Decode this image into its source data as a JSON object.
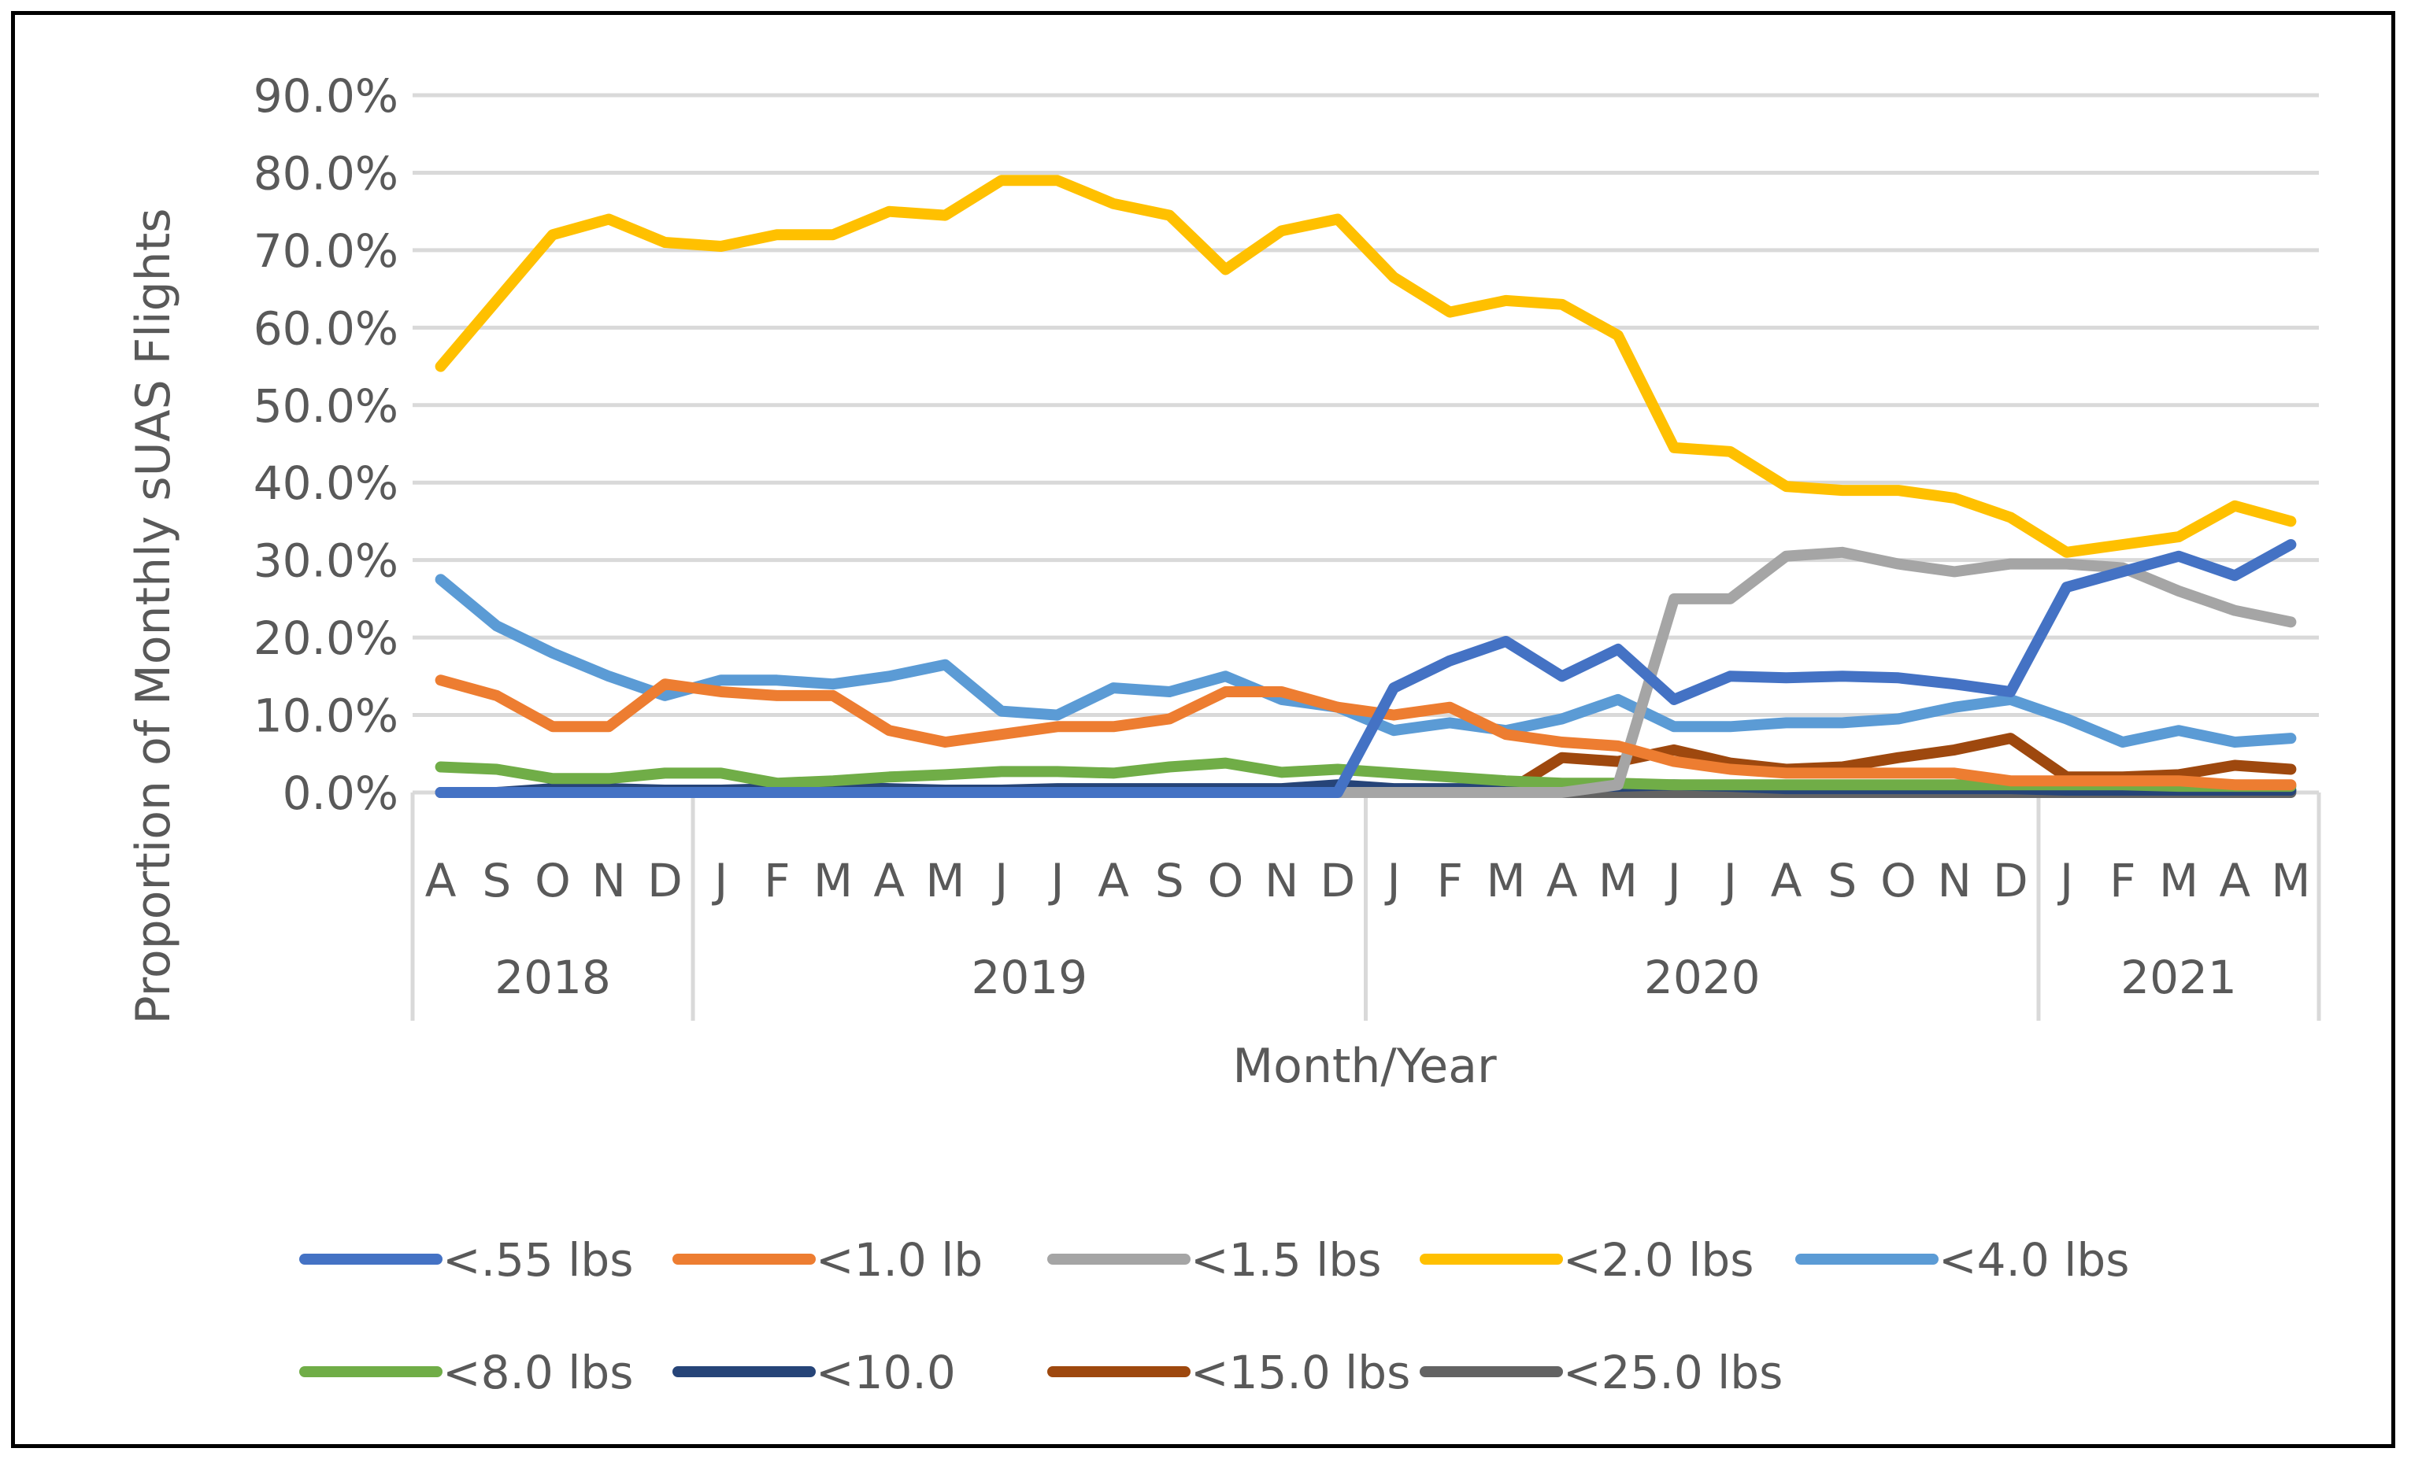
{
  "chart_data": {
    "type": "line",
    "title": "",
    "xlabel": "Month/Year",
    "ylabel": "Proportion of Monthly sUAS Flights",
    "ylim": [
      0,
      90
    ],
    "y_ticks": [
      0,
      10,
      20,
      30,
      40,
      50,
      60,
      70,
      80,
      90
    ],
    "y_tick_labels": [
      "0.0%",
      "10.0%",
      "20.0%",
      "30.0%",
      "40.0%",
      "50.0%",
      "60.0%",
      "70.0%",
      "80.0%",
      "90.0%"
    ],
    "grid": true,
    "legend_position": "bottom",
    "categories": [
      "A",
      "S",
      "O",
      "N",
      "D",
      "J",
      "F",
      "M",
      "A",
      "M",
      "J",
      "J",
      "A",
      "S",
      "O",
      "N",
      "D",
      "J",
      "F",
      "M",
      "A",
      "M",
      "J",
      "J",
      "A",
      "S",
      "O",
      "N",
      "D",
      "J",
      "F",
      "M",
      "A",
      "M"
    ],
    "year_groups": [
      {
        "label": "2018",
        "start": 0,
        "end": 4
      },
      {
        "label": "2019",
        "start": 5,
        "end": 16
      },
      {
        "label": "2020",
        "start": 17,
        "end": 28
      },
      {
        "label": "2021",
        "start": 29,
        "end": 33
      }
    ],
    "series": [
      {
        "name": "<.55 lbs",
        "color": "#4472C4",
        "values": [
          0,
          0,
          0,
          0,
          0,
          0,
          0,
          0,
          0,
          0,
          0,
          0,
          0,
          0,
          0,
          0,
          0,
          13.5,
          17,
          19.5,
          15,
          18.5,
          12,
          15,
          14.8,
          15,
          14.8,
          14,
          13,
          26.5,
          28.5,
          30.5,
          28,
          32
        ]
      },
      {
        "name": "<1.0 lb",
        "color": "#ED7D31",
        "values": [
          14.5,
          12.5,
          8.5,
          8.5,
          14,
          13,
          12.5,
          12.5,
          8,
          6.5,
          7.5,
          8.5,
          8.5,
          9.5,
          13,
          13,
          11,
          10,
          11,
          7.5,
          6.5,
          6,
          4,
          3,
          2.5,
          2.5,
          2.5,
          2.5,
          1.5,
          1.5,
          1.5,
          1.5,
          1,
          1
        ]
      },
      {
        "name": "<1.5 lbs",
        "color": "#A5A5A5",
        "values": [
          0,
          0,
          0,
          0,
          0,
          0,
          0,
          0,
          0,
          0,
          0,
          0,
          0,
          0,
          0,
          0,
          0,
          0,
          0,
          0,
          0,
          1,
          25,
          25,
          30.5,
          31,
          29.5,
          28.5,
          29.5,
          29.5,
          29,
          26,
          23.5,
          22
        ]
      },
      {
        "name": "<2.0 lbs",
        "color": "#FFC000",
        "values": [
          55,
          63.5,
          72,
          74,
          71,
          70.5,
          72,
          72,
          75,
          74.5,
          79,
          79,
          76,
          74.5,
          67.5,
          72.5,
          74,
          66.5,
          62,
          63.5,
          63,
          59,
          44.5,
          44,
          39.5,
          39,
          39,
          38,
          35.5,
          31,
          32,
          33,
          37,
          35
        ]
      },
      {
        "name": "<4.0 lbs",
        "color": "#5B9BD5",
        "values": [
          27.5,
          21.5,
          18,
          15,
          12.5,
          14.5,
          14.5,
          14,
          15,
          16.5,
          10.5,
          10,
          13.5,
          13,
          15,
          12,
          11,
          8,
          9,
          8,
          9.5,
          12,
          8.5,
          8.5,
          9,
          9,
          9.5,
          11,
          12,
          9.5,
          6.5,
          8,
          6.5,
          7
        ]
      },
      {
        "name": "<8.0 lbs",
        "color": "#70AD47",
        "values": [
          3.3,
          3,
          1.8,
          1.8,
          2.5,
          2.5,
          1.2,
          1.5,
          2,
          2.3,
          2.7,
          2.7,
          2.5,
          3.3,
          3.8,
          2.6,
          3,
          2.5,
          2,
          1.5,
          1.2,
          1.2,
          1,
          1,
          1,
          1,
          1,
          1,
          1,
          1,
          1,
          0.8,
          0.8,
          0.8
        ]
      },
      {
        "name": "<10.0",
        "color": "#264478",
        "values": [
          0,
          0,
          0.5,
          0.5,
          0.3,
          0.3,
          0.5,
          0.8,
          0.5,
          0.3,
          0.3,
          0.5,
          0.5,
          0.5,
          0.5,
          0.5,
          1,
          0.5,
          0.5,
          0.5,
          0.8,
          0.8,
          1,
          0.8,
          0.5,
          0.5,
          0.5,
          0.5,
          0.5,
          0.3,
          0.3,
          0.3,
          0.3,
          0.3
        ]
      },
      {
        "name": "<15.0 lbs",
        "color": "#9E480E",
        "values": [
          null,
          null,
          null,
          null,
          null,
          null,
          null,
          null,
          null,
          null,
          null,
          null,
          null,
          null,
          null,
          null,
          null,
          null,
          null,
          0,
          4.5,
          4,
          5.5,
          3.8,
          3,
          3.3,
          4.5,
          5.5,
          7,
          2,
          2,
          2.3,
          3.5,
          3
        ]
      },
      {
        "name": "<25.0 lbs",
        "color": "#636363",
        "values": [
          0,
          0,
          0,
          0,
          0,
          0,
          0,
          0,
          0,
          0,
          0,
          0,
          0,
          0,
          0,
          0,
          0,
          0,
          0,
          0,
          0,
          0,
          0,
          0,
          0,
          0,
          0,
          0,
          0,
          0,
          0,
          0,
          0,
          0
        ]
      }
    ]
  }
}
